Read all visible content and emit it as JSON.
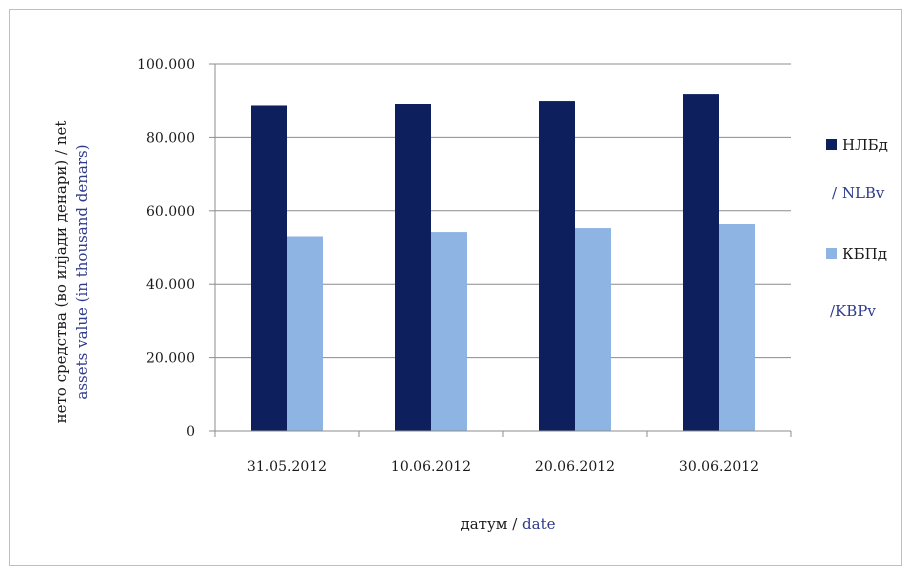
{
  "chart_data": {
    "type": "bar",
    "categories": [
      "31.05.2012",
      "10.06.2012",
      "20.06.2012",
      "30.06.2012"
    ],
    "series": [
      {
        "name": "НЛБд",
        "name_en": "/ NLBv",
        "color": "#0d1f5c",
        "values": [
          88700,
          89100,
          89900,
          91800
        ]
      },
      {
        "name": "КБПд",
        "name_en": "/KBPv",
        "color": "#8db4e2",
        "values": [
          53000,
          54200,
          55300,
          56400
        ]
      }
    ],
    "ylim": [
      0,
      100000
    ],
    "yticks": [
      "0",
      "20.000",
      "40.000",
      "60.000",
      "80.000",
      "100.000"
    ],
    "ytick_values": [
      0,
      20000,
      40000,
      60000,
      80000,
      100000
    ],
    "ylabel_line1": "нето средства (во илјади денари) / net",
    "ylabel_line2": "assets value (in thousand denars)",
    "xlabel_part1": "датум / ",
    "xlabel_part2": "date",
    "grid": true,
    "legend_position": "right"
  }
}
